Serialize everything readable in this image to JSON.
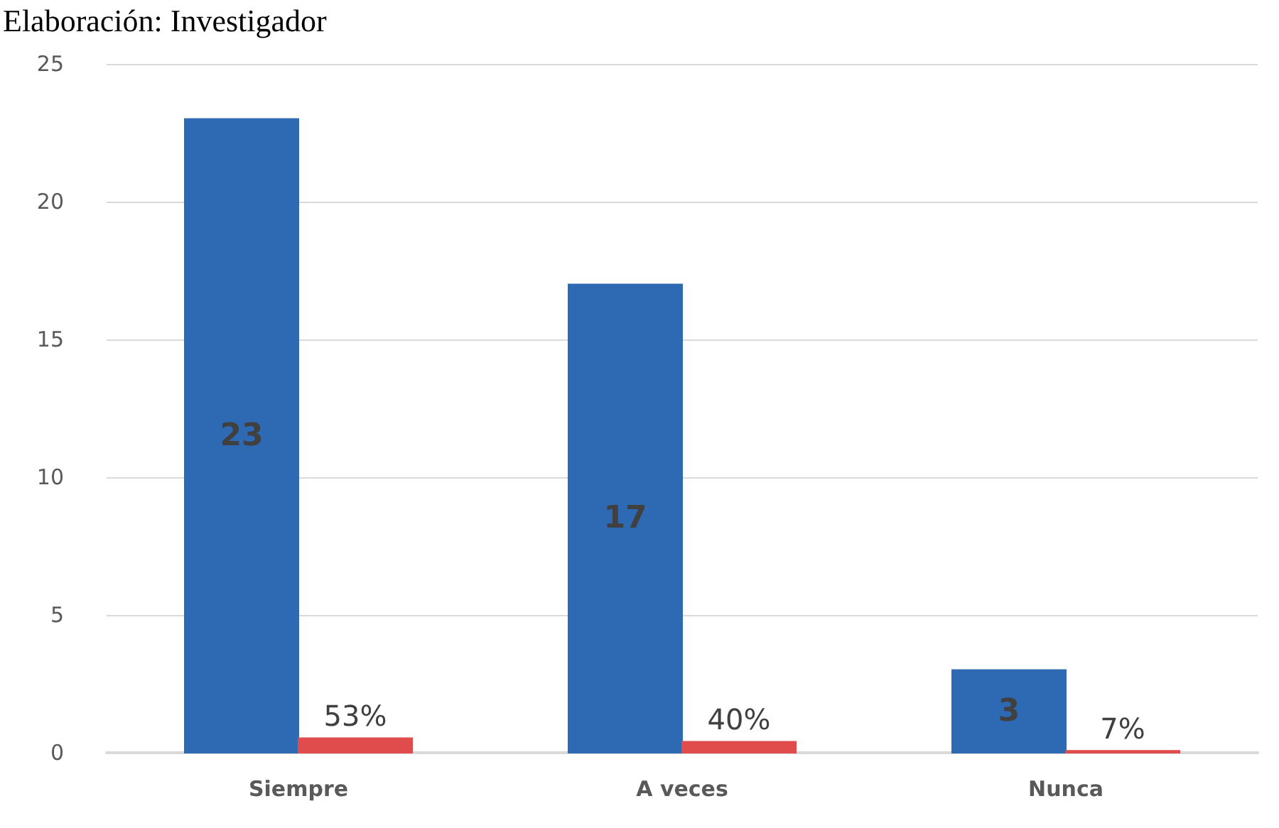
{
  "chart_data": {
    "type": "bar",
    "annotations": [
      "Elaboración: Investigador"
    ],
    "categories": [
      "Siempre",
      "A veces",
      "Nunca"
    ],
    "series": [
      {
        "color": "#2e6ab3",
        "values": [
          23,
          17,
          3
        ],
        "value_labels": [
          "23",
          "17",
          "3"
        ]
      },
      {
        "color": "#e04b4b",
        "values": [
          0.53,
          0.4,
          0.07
        ],
        "value_labels": [
          "53%",
          "40%",
          "7%"
        ]
      }
    ],
    "ylim": [
      0,
      25
    ],
    "yticks": [
      0,
      5,
      10,
      15,
      20,
      25
    ],
    "grid": "y"
  }
}
